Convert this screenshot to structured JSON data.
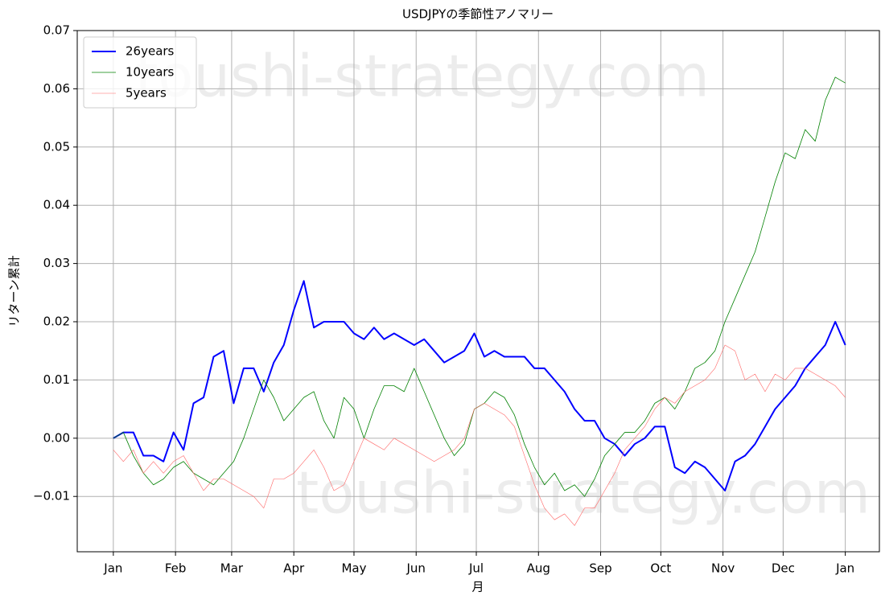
{
  "chart_data": {
    "type": "line",
    "title": "USDJPYの季節性アノマリー",
    "xlabel": "月",
    "ylabel": "リターン累計",
    "watermark": "toushi-strategy.com",
    "legend": "upper left",
    "grid": true,
    "xlim": [
      -18,
      382
    ],
    "ylim": [
      -0.0195,
      0.07
    ],
    "xticks": [
      {
        "value": 0,
        "label": "Jan"
      },
      {
        "value": 31,
        "label": "Feb"
      },
      {
        "value": 59,
        "label": "Mar"
      },
      {
        "value": 90,
        "label": "Apr"
      },
      {
        "value": 120,
        "label": "May"
      },
      {
        "value": 151,
        "label": "Jun"
      },
      {
        "value": 181,
        "label": "Jul"
      },
      {
        "value": 212,
        "label": "Aug"
      },
      {
        "value": 243,
        "label": "Sep"
      },
      {
        "value": 273,
        "label": "Oct"
      },
      {
        "value": 304,
        "label": "Nov"
      },
      {
        "value": 334,
        "label": "Dec"
      },
      {
        "value": 365,
        "label": "Jan"
      }
    ],
    "yticks": [
      {
        "value": -0.01,
        "label": "−0.01"
      },
      {
        "value": 0,
        "label": "0.00"
      },
      0.01,
      0.02,
      0.03,
      0.04,
      0.05,
      0.06,
      0.07
    ],
    "x": [
      0,
      5,
      10,
      15,
      20,
      25,
      30,
      35,
      40,
      45,
      50,
      55,
      60,
      65,
      70,
      75,
      80,
      85,
      90,
      95,
      100,
      105,
      110,
      115,
      120,
      125,
      130,
      135,
      140,
      145,
      150,
      155,
      160,
      165,
      170,
      175,
      180,
      185,
      190,
      195,
      200,
      205,
      210,
      215,
      220,
      225,
      230,
      235,
      240,
      245,
      250,
      255,
      260,
      265,
      270,
      275,
      280,
      285,
      290,
      295,
      300,
      305,
      310,
      315,
      320,
      325,
      330,
      335,
      340,
      345,
      350,
      355,
      360,
      365
    ],
    "series": [
      {
        "name": "26years",
        "color": "#0000ff",
        "width": 2,
        "values": [
          0.0,
          0.001,
          0.001,
          -0.003,
          -0.003,
          -0.004,
          0.001,
          -0.002,
          0.006,
          0.007,
          0.014,
          0.015,
          0.006,
          0.012,
          0.012,
          0.008,
          0.013,
          0.016,
          0.022,
          0.027,
          0.019,
          0.02,
          0.02,
          0.02,
          0.018,
          0.017,
          0.019,
          0.017,
          0.018,
          0.017,
          0.016,
          0.017,
          0.015,
          0.013,
          0.014,
          0.015,
          0.018,
          0.014,
          0.015,
          0.014,
          0.014,
          0.014,
          0.012,
          0.012,
          0.01,
          0.008,
          0.005,
          0.003,
          0.003,
          0.0,
          -0.001,
          -0.003,
          -0.001,
          0.0,
          0.002,
          0.002,
          -0.005,
          -0.006,
          -0.004,
          -0.005,
          -0.007,
          -0.009,
          -0.004,
          -0.003,
          -0.001,
          0.002,
          0.005,
          0.007,
          0.009,
          0.012,
          0.014,
          0.016,
          0.02,
          0.016
        ]
      },
      {
        "name": "10years",
        "color": "#008000",
        "width": 0.8,
        "values": [
          0.0,
          0.001,
          -0.003,
          -0.006,
          -0.008,
          -0.007,
          -0.005,
          -0.004,
          -0.006,
          -0.007,
          -0.008,
          -0.006,
          -0.004,
          0.0,
          0.005,
          0.01,
          0.007,
          0.003,
          0.005,
          0.007,
          0.008,
          0.003,
          0.0,
          0.007,
          0.005,
          0.0,
          0.005,
          0.009,
          0.009,
          0.008,
          0.012,
          0.008,
          0.004,
          0.0,
          -0.003,
          -0.001,
          0.005,
          0.006,
          0.008,
          0.007,
          0.004,
          -0.001,
          -0.005,
          -0.008,
          -0.006,
          -0.009,
          -0.008,
          -0.01,
          -0.007,
          -0.003,
          -0.001,
          0.001,
          0.001,
          0.003,
          0.006,
          0.007,
          0.005,
          0.008,
          0.012,
          0.013,
          0.015,
          0.02,
          0.024,
          0.028,
          0.032,
          0.038,
          0.044,
          0.049,
          0.048,
          0.053,
          0.051,
          0.058,
          0.062,
          0.061
        ]
      },
      {
        "name": "5years",
        "color": "#ff6666",
        "width": 0.6,
        "values": [
          -0.002,
          -0.004,
          -0.002,
          -0.006,
          -0.004,
          -0.006,
          -0.004,
          -0.003,
          -0.006,
          -0.009,
          -0.007,
          -0.007,
          -0.008,
          -0.009,
          -0.01,
          -0.012,
          -0.007,
          -0.007,
          -0.006,
          -0.004,
          -0.002,
          -0.005,
          -0.009,
          -0.008,
          -0.004,
          0.0,
          -0.001,
          -0.002,
          0.0,
          -0.001,
          -0.002,
          -0.003,
          -0.004,
          -0.003,
          -0.002,
          0.0,
          0.005,
          0.006,
          0.005,
          0.004,
          0.002,
          -0.003,
          -0.008,
          -0.012,
          -0.014,
          -0.013,
          -0.015,
          -0.012,
          -0.012,
          -0.009,
          -0.006,
          -0.002,
          0.0,
          0.002,
          0.005,
          0.007,
          0.006,
          0.008,
          0.009,
          0.01,
          0.012,
          0.016,
          0.015,
          0.01,
          0.011,
          0.008,
          0.011,
          0.01,
          0.012,
          0.012,
          0.011,
          0.01,
          0.009,
          0.007
        ]
      }
    ]
  }
}
